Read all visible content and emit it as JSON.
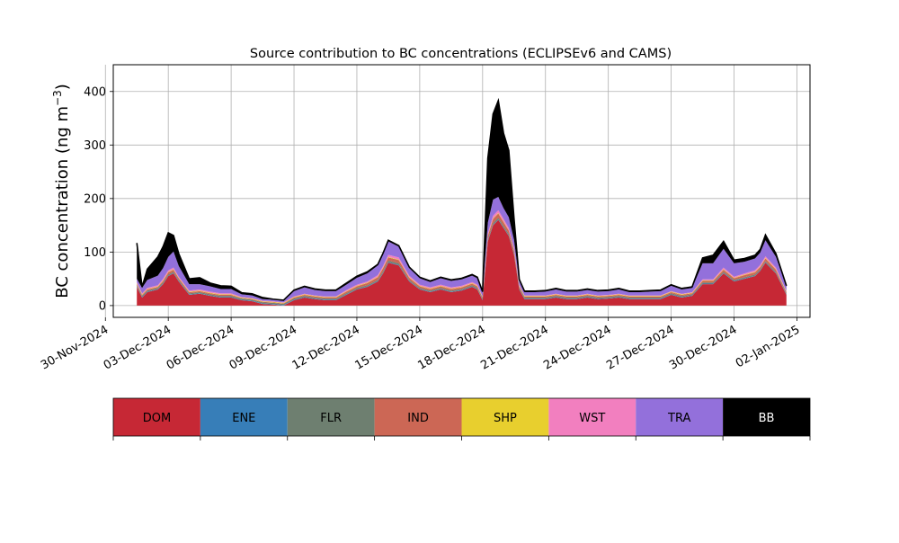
{
  "chart_data": {
    "type": "area",
    "stacked": true,
    "title": "Source contribution to BC concentrations (ECLIPSEv6 and CAMS)",
    "ylabel": "BC concentration (ng m",
    "ylabel_sup": "−3",
    "ylabel_close": ")",
    "xlabel": "",
    "ylim": [
      -22,
      450
    ],
    "xlim": [
      "2024-11-30T09:00",
      "2025-01-02T15:00"
    ],
    "yticks": [
      0,
      100,
      200,
      300,
      400
    ],
    "xticks": [
      "30-Nov-2024",
      "03-Dec-2024",
      "06-Dec-2024",
      "09-Dec-2024",
      "12-Dec-2024",
      "15-Dec-2024",
      "18-Dec-2024",
      "21-Dec-2024",
      "24-Dec-2024",
      "27-Dec-2024",
      "30-Dec-2024",
      "02-Jan-2025"
    ],
    "xtick_dates": [
      "2024-11-30",
      "2024-12-03",
      "2024-12-06",
      "2024-12-09",
      "2024-12-12",
      "2024-12-15",
      "2024-12-18",
      "2024-12-21",
      "2024-12-24",
      "2024-12-27",
      "2024-12-30",
      "2025-01-02"
    ],
    "grid": true,
    "x": [
      "2024-12-01T12:00",
      "2024-12-01T18:00",
      "2024-12-02T00:00",
      "2024-12-02T12:00",
      "2024-12-02T18:00",
      "2024-12-03T00:00",
      "2024-12-03T06:00",
      "2024-12-03T12:00",
      "2024-12-04T00:00",
      "2024-12-04T12:00",
      "2024-12-05T00:00",
      "2024-12-05T12:00",
      "2024-12-06T00:00",
      "2024-12-06T12:00",
      "2024-12-07T00:00",
      "2024-12-07T12:00",
      "2024-12-08T00:00",
      "2024-12-08T12:00",
      "2024-12-09T00:00",
      "2024-12-09T12:00",
      "2024-12-10T00:00",
      "2024-12-10T12:00",
      "2024-12-11T00:00",
      "2024-12-11T12:00",
      "2024-12-12T00:00",
      "2024-12-12T12:00",
      "2024-12-13T00:00",
      "2024-12-13T06:00",
      "2024-12-13T12:00",
      "2024-12-14T00:00",
      "2024-12-14T12:00",
      "2024-12-15T00:00",
      "2024-12-15T12:00",
      "2024-12-16T00:00",
      "2024-12-16T12:00",
      "2024-12-17T00:00",
      "2024-12-17T12:00",
      "2024-12-17T18:00",
      "2024-12-18T00:00",
      "2024-12-18T06:00",
      "2024-12-18T12:00",
      "2024-12-18T18:00",
      "2024-12-19T00:00",
      "2024-12-19T06:00",
      "2024-12-19T12:00",
      "2024-12-19T18:00",
      "2024-12-20T00:00",
      "2024-12-20T12:00",
      "2024-12-21T00:00",
      "2024-12-21T12:00",
      "2024-12-22T00:00",
      "2024-12-22T12:00",
      "2024-12-23T00:00",
      "2024-12-23T12:00",
      "2024-12-24T00:00",
      "2024-12-24T12:00",
      "2024-12-25T00:00",
      "2024-12-25T12:00",
      "2024-12-26T00:00",
      "2024-12-26T12:00",
      "2024-12-27T00:00",
      "2024-12-27T12:00",
      "2024-12-28T00:00",
      "2024-12-28T12:00",
      "2024-12-29T00:00",
      "2024-12-29T12:00",
      "2024-12-30T00:00",
      "2024-12-30T12:00",
      "2024-12-31T00:00",
      "2024-12-31T06:00",
      "2024-12-31T12:00",
      "2025-01-01T00:00",
      "2025-01-01T12:00"
    ],
    "series": [
      {
        "name": "DOM",
        "color": "#c62835",
        "values": [
          35,
          15,
          25,
          30,
          40,
          55,
          60,
          45,
          20,
          22,
          18,
          15,
          15,
          10,
          8,
          3,
          2,
          0,
          10,
          15,
          12,
          10,
          10,
          20,
          30,
          35,
          45,
          60,
          80,
          75,
          45,
          30,
          25,
          30,
          25,
          28,
          35,
          30,
          10,
          120,
          150,
          160,
          145,
          130,
          95,
          30,
          12,
          12,
          12,
          15,
          12,
          12,
          15,
          12,
          13,
          15,
          12,
          12,
          12,
          12,
          20,
          15,
          18,
          40,
          40,
          60,
          45,
          50,
          55,
          65,
          80,
          60,
          20
        ]
      },
      {
        "name": "ENE",
        "color": "#377eb8",
        "values": [
          1,
          1,
          1,
          1,
          1,
          1,
          1,
          1,
          1,
          1,
          1,
          1,
          1,
          1,
          1,
          1,
          1,
          1,
          1,
          1,
          1,
          1,
          1,
          1,
          1,
          1,
          1,
          1,
          1,
          1,
          1,
          1,
          1,
          1,
          1,
          1,
          1,
          1,
          1,
          1,
          1,
          1,
          1,
          1,
          1,
          1,
          1,
          1,
          1,
          1,
          1,
          1,
          1,
          1,
          1,
          1,
          1,
          1,
          1,
          1,
          1,
          1,
          1,
          1,
          1,
          1,
          1,
          1,
          1,
          1,
          1,
          1,
          1
        ]
      },
      {
        "name": "FLR",
        "color": "#6e7f70",
        "values": [
          2,
          2,
          2,
          2,
          2,
          2,
          2,
          2,
          2,
          2,
          2,
          2,
          2,
          2,
          2,
          2,
          2,
          2,
          2,
          2,
          2,
          2,
          2,
          2,
          2,
          2,
          2,
          3,
          3,
          3,
          2,
          2,
          2,
          2,
          2,
          2,
          2,
          2,
          2,
          3,
          3,
          3,
          3,
          3,
          3,
          2,
          2,
          2,
          2,
          2,
          2,
          2,
          2,
          2,
          2,
          2,
          2,
          2,
          2,
          2,
          2,
          2,
          2,
          2,
          2,
          2,
          2,
          2,
          2,
          2,
          2,
          2,
          2
        ]
      },
      {
        "name": "IND",
        "color": "#cc6755",
        "values": [
          3,
          2,
          2,
          2,
          3,
          4,
          4,
          3,
          2,
          2,
          2,
          2,
          2,
          1,
          1,
          1,
          1,
          1,
          2,
          2,
          2,
          2,
          2,
          3,
          3,
          4,
          5,
          6,
          6,
          6,
          4,
          3,
          3,
          3,
          3,
          3,
          3,
          3,
          2,
          6,
          8,
          8,
          7,
          6,
          5,
          3,
          2,
          2,
          2,
          2,
          2,
          2,
          2,
          2,
          2,
          2,
          2,
          2,
          2,
          2,
          2,
          2,
          2,
          3,
          3,
          4,
          3,
          4,
          4,
          4,
          5,
          4,
          2
        ]
      },
      {
        "name": "SHP",
        "color": "#e8cf2e",
        "values": [
          1,
          1,
          1,
          1,
          1,
          1,
          1,
          1,
          1,
          1,
          1,
          1,
          1,
          1,
          1,
          1,
          1,
          1,
          1,
          1,
          1,
          1,
          1,
          1,
          1,
          1,
          1,
          1,
          1,
          1,
          1,
          1,
          1,
          1,
          1,
          1,
          1,
          1,
          1,
          1,
          1,
          1,
          1,
          1,
          1,
          1,
          1,
          1,
          1,
          1,
          1,
          1,
          1,
          1,
          1,
          1,
          1,
          1,
          1,
          1,
          1,
          1,
          1,
          1,
          1,
          1,
          1,
          1,
          1,
          1,
          1,
          1,
          1
        ]
      },
      {
        "name": "WST",
        "color": "#f27fbf",
        "values": [
          2,
          2,
          2,
          2,
          3,
          3,
          3,
          2,
          2,
          2,
          2,
          2,
          2,
          1,
          1,
          1,
          1,
          1,
          1,
          1,
          1,
          1,
          1,
          2,
          2,
          2,
          3,
          3,
          4,
          4,
          3,
          2,
          2,
          2,
          2,
          2,
          2,
          2,
          1,
          4,
          5,
          5,
          5,
          4,
          3,
          2,
          1,
          1,
          1,
          1,
          1,
          1,
          1,
          1,
          1,
          1,
          1,
          1,
          1,
          1,
          1,
          1,
          1,
          2,
          2,
          3,
          2,
          2,
          3,
          3,
          3,
          3,
          1
        ]
      },
      {
        "name": "TRA",
        "color": "#9370db",
        "values": [
          6,
          10,
          15,
          18,
          20,
          25,
          30,
          20,
          12,
          10,
          10,
          8,
          8,
          5,
          5,
          3,
          3,
          3,
          10,
          12,
          10,
          10,
          10,
          10,
          13,
          15,
          18,
          22,
          25,
          20,
          14,
          12,
          10,
          12,
          12,
          12,
          12,
          12,
          8,
          20,
          30,
          25,
          20,
          20,
          15,
          8,
          6,
          6,
          7,
          8,
          7,
          7,
          7,
          7,
          7,
          8,
          6,
          6,
          7,
          8,
          10,
          8,
          8,
          30,
          30,
          35,
          25,
          22,
          22,
          23,
          30,
          20,
          8
        ]
      },
      {
        "name": "BB",
        "color": "#000000",
        "values": [
          67,
          2,
          20,
          35,
          40,
          45,
          30,
          23,
          10,
          12,
          6,
          6,
          5,
          3,
          3,
          3,
          1,
          1,
          2,
          2,
          2,
          2,
          2,
          3,
          3,
          3,
          2,
          2,
          2,
          2,
          2,
          2,
          2,
          2,
          2,
          2,
          2,
          2,
          1,
          120,
          160,
          180,
          140,
          125,
          40,
          2,
          2,
          2,
          2,
          2,
          2,
          2,
          2,
          2,
          2,
          2,
          2,
          2,
          2,
          2,
          2,
          2,
          2,
          10,
          15,
          14,
          6,
          6,
          6,
          6,
          10,
          6,
          2
        ]
      }
    ],
    "legend": {
      "placement": "below",
      "entries": [
        "DOM",
        "ENE",
        "FLR",
        "IND",
        "SHP",
        "WST",
        "TRA",
        "BB"
      ]
    }
  }
}
